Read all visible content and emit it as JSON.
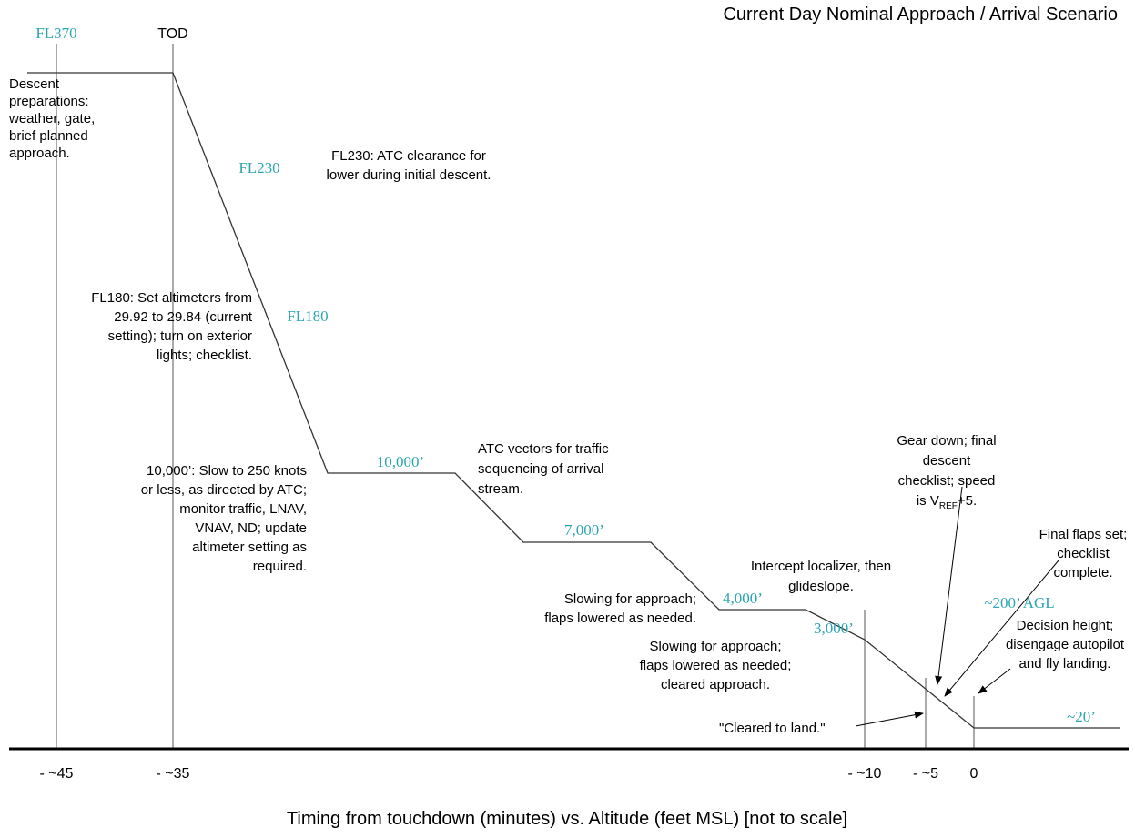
{
  "title": "Current Day Nominal Approach / Arrival Scenario",
  "caption": "Timing from touchdown (minutes) vs. Altitude (feet MSL) [not to scale]",
  "time_labels": [
    "- ~45",
    "- ~35",
    "- ~10",
    "- ~5",
    "0"
  ],
  "top_labels": [
    "FL370",
    "TOD"
  ],
  "altitude_labels": [
    "FL230",
    "FL180",
    "10,000’",
    "7,000’",
    "4,000’",
    "3,000’",
    "~200’ AGL",
    "~20’"
  ],
  "annotations": [
    {
      "lines": [
        "Descent",
        "preparations:",
        "weather, gate,",
        "brief planned",
        "approach."
      ]
    },
    {
      "lines": [
        "FL230:  ATC clearance for",
        "lower during initial descent."
      ]
    },
    {
      "lines": [
        "FL180:  Set altimeters from",
        "29.92 to 29.84 (current",
        "setting); turn on exterior",
        "lights; checklist."
      ]
    },
    {
      "lines": [
        "10,000’:  Slow to 250 knots",
        "or less, as directed by ATC;",
        "monitor traffic, LNAV,",
        "VNAV, ND; update",
        "altimeter setting as",
        "required."
      ]
    },
    {
      "lines": [
        "ATC vectors for traffic",
        "sequencing of arrival",
        "stream."
      ]
    },
    {
      "lines": [
        "Intercept localizer, then",
        "glideslope."
      ]
    },
    {
      "lines": [
        "Slowing for approach;",
        "flaps lowered as needed."
      ]
    },
    {
      "lines": [
        "Slowing for approach;",
        "flaps lowered as needed;",
        "cleared approach."
      ]
    },
    {
      "lines": [
        "\"Cleared to land.\""
      ]
    },
    {
      "lines": [
        "Gear down; final",
        "descent",
        "checklist; speed",
        {
          "parts": [
            "is V",
            "REF",
            "+5."
          ]
        }
      ]
    },
    {
      "lines": [
        "Final flaps set;",
        "checklist",
        "complete."
      ]
    },
    {
      "lines": [
        "Decision height;",
        "disengage autopilot",
        "and fly landing."
      ]
    }
  ]
}
